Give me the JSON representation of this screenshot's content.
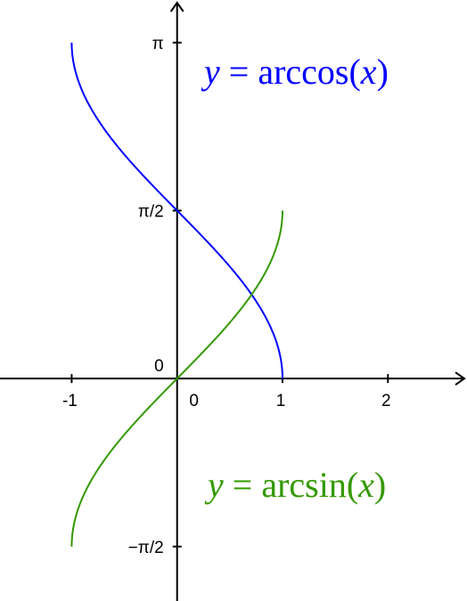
{
  "chart_data": {
    "type": "line",
    "title": "",
    "xlabel": "",
    "ylabel": "",
    "xlim": [
      -1.68,
      2.75
    ],
    "ylim": [
      -2.08,
      3.54
    ],
    "grid": false,
    "x_ticks": [
      {
        "value": -1,
        "label": "-1"
      },
      {
        "value": 1,
        "label": "1"
      },
      {
        "value": 2,
        "label": "2"
      }
    ],
    "x_origin_label": "0",
    "y_ticks": [
      {
        "value": 3.14159265,
        "label": "π"
      },
      {
        "value": 1.57079633,
        "label": "π/2"
      },
      {
        "value": -1.57079633,
        "label": "−π/2"
      }
    ],
    "y_origin_label": "0",
    "series": [
      {
        "name": "y = arccos(x)",
        "color": "#0000ff",
        "function": "arccos",
        "x_domain": [
          -1,
          1
        ],
        "label_parts": {
          "y": "y",
          "eq": " = arccos(",
          "x": "x",
          "close": ")"
        }
      },
      {
        "name": "y = arcsin(x)",
        "color": "#339900",
        "function": "arcsin",
        "x_domain": [
          -1,
          1
        ],
        "label_parts": {
          "y": "y",
          "eq": " = arcsin(",
          "x": "x",
          "close": ")"
        }
      }
    ],
    "axis_color": "#000000"
  }
}
